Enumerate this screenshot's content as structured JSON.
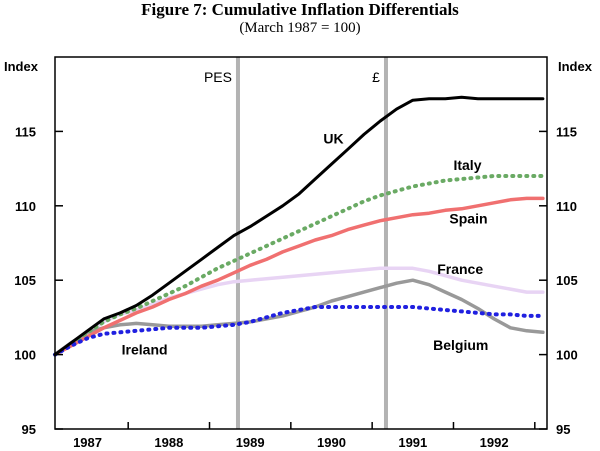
{
  "chart_data": {
    "type": "line",
    "title": "Figure 7: Cumulative Inflation Differentials",
    "subtitle": "(March 1987 = 100)",
    "ylabel_left": "Index",
    "ylabel_right": "Index",
    "ylim": [
      95,
      120
    ],
    "yticks": [
      95,
      100,
      105,
      110,
      115
    ],
    "xlim": [
      1986.6,
      1992.65
    ],
    "xtick_labels": [
      "1987",
      "1988",
      "1989",
      "1990",
      "1991",
      "1992"
    ],
    "xtick_positions": [
      1987.0,
      1988.0,
      1989.0,
      1990.0,
      1991.0,
      1992.0
    ],
    "annotations": [
      {
        "label": "PES",
        "x": 1988.85
      },
      {
        "label": "£",
        "x": 1990.67
      }
    ],
    "x": [
      1986.6,
      1986.8,
      1987.0,
      1987.2,
      1987.4,
      1987.6,
      1987.8,
      1988.0,
      1988.2,
      1988.4,
      1988.6,
      1988.8,
      1989.0,
      1989.2,
      1989.4,
      1989.6,
      1989.8,
      1990.0,
      1990.2,
      1990.4,
      1990.6,
      1990.8,
      1991.0,
      1991.2,
      1991.4,
      1991.6,
      1991.8,
      1992.0,
      1992.2,
      1992.4,
      1992.6
    ],
    "series": [
      {
        "name": "UK",
        "color": "#000000",
        "dash": "solid",
        "values": [
          100.0,
          100.8,
          101.6,
          102.4,
          102.8,
          103.3,
          104.0,
          104.8,
          105.6,
          106.4,
          107.2,
          108.0,
          108.6,
          109.3,
          110.0,
          110.8,
          111.8,
          112.8,
          113.8,
          114.8,
          115.7,
          116.5,
          117.1,
          117.2,
          117.2,
          117.3,
          117.2,
          117.2,
          117.2,
          117.2,
          117.2
        ]
      },
      {
        "name": "Italy",
        "color": "#6aaa64",
        "dash": "dotted",
        "values": [
          100.0,
          100.7,
          101.5,
          102.2,
          102.7,
          103.1,
          103.6,
          104.1,
          104.6,
          105.2,
          105.8,
          106.3,
          106.8,
          107.3,
          107.8,
          108.3,
          108.8,
          109.3,
          109.8,
          110.3,
          110.7,
          111.0,
          111.3,
          111.5,
          111.7,
          111.8,
          111.9,
          112.0,
          112.0,
          112.0,
          112.0
        ]
      },
      {
        "name": "Spain",
        "color": "#f07070",
        "dash": "solid",
        "values": [
          100.0,
          100.6,
          101.2,
          101.8,
          102.3,
          102.8,
          103.2,
          103.7,
          104.1,
          104.6,
          105.0,
          105.5,
          106.0,
          106.4,
          106.9,
          107.3,
          107.7,
          108.0,
          108.4,
          108.7,
          109.0,
          109.2,
          109.4,
          109.5,
          109.7,
          109.8,
          110.0,
          110.2,
          110.4,
          110.5,
          110.5
        ]
      },
      {
        "name": "France",
        "color": "#e8d4f4",
        "dash": "solid",
        "values": [
          100.0,
          100.8,
          101.5,
          102.2,
          102.7,
          103.0,
          103.4,
          103.8,
          104.1,
          104.4,
          104.7,
          104.9,
          105.0,
          105.1,
          105.2,
          105.3,
          105.4,
          105.5,
          105.6,
          105.7,
          105.8,
          105.8,
          105.8,
          105.6,
          105.3,
          105.0,
          104.8,
          104.6,
          104.4,
          104.2,
          104.2
        ]
      },
      {
        "name": "Belgium",
        "color": "#999999",
        "dash": "solid",
        "values": [
          100.0,
          100.8,
          101.5,
          101.8,
          102.0,
          102.1,
          102.0,
          101.9,
          101.9,
          101.9,
          102.0,
          102.1,
          102.2,
          102.4,
          102.6,
          102.9,
          103.2,
          103.6,
          103.9,
          104.2,
          104.5,
          104.8,
          105.0,
          104.7,
          104.2,
          103.7,
          103.1,
          102.4,
          101.8,
          101.6,
          101.5
        ]
      },
      {
        "name": "Ireland",
        "color": "#2020e0",
        "dash": "dotted",
        "values": [
          100.0,
          100.6,
          101.1,
          101.4,
          101.5,
          101.6,
          101.7,
          101.8,
          101.8,
          101.8,
          101.9,
          102.0,
          102.2,
          102.5,
          102.8,
          103.0,
          103.2,
          103.2,
          103.2,
          103.2,
          103.2,
          103.2,
          103.2,
          103.1,
          103.0,
          102.9,
          102.8,
          102.7,
          102.7,
          102.6,
          102.6
        ]
      }
    ],
    "series_labels": [
      {
        "name": "UK",
        "x": 1989.9,
        "y": 114.2
      },
      {
        "name": "Italy",
        "x": 1991.5,
        "y": 112.4
      },
      {
        "name": "Spain",
        "x": 1991.45,
        "y": 108.8
      },
      {
        "name": "France",
        "x": 1991.3,
        "y": 105.4
      },
      {
        "name": "Belgium",
        "x": 1991.25,
        "y": 100.3
      },
      {
        "name": "Ireland",
        "x": 1987.42,
        "y": 100.0
      }
    ],
    "grid": false,
    "legend": "none"
  }
}
